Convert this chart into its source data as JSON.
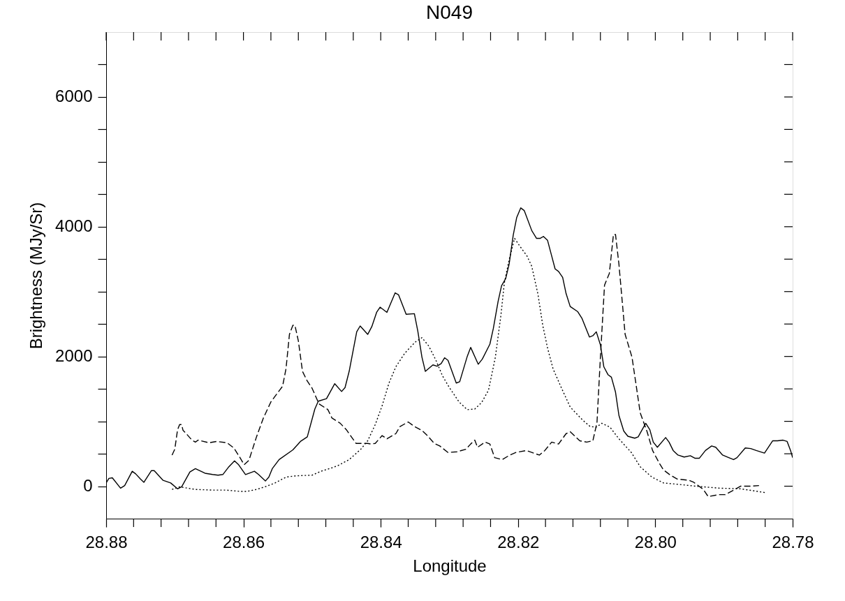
{
  "chart_data": {
    "type": "line",
    "title": "N049",
    "xlabel": "Longitude",
    "ylabel": "Brightness (MJy/Sr)",
    "xlim": [
      28.88,
      28.78
    ],
    "ylim": [
      -500,
      7000
    ],
    "xticks": [
      28.88,
      {
        "value": 28.876,
        "label": null
      },
      {
        "value": 28.872,
        "label": null
      },
      {
        "value": 28.868,
        "label": null
      },
      {
        "value": 28.864,
        "label": null
      },
      28.86,
      {
        "value": 28.856,
        "label": null
      },
      {
        "value": 28.852,
        "label": null
      },
      {
        "value": 28.848,
        "label": null
      },
      {
        "value": 28.844,
        "label": null
      },
      28.84,
      {
        "value": 28.836,
        "label": null
      },
      {
        "value": 28.832,
        "label": null
      },
      {
        "value": 28.828,
        "label": null
      },
      {
        "value": 28.824,
        "label": null
      },
      28.82,
      {
        "value": 28.816,
        "label": null
      },
      {
        "value": 28.812,
        "label": null
      },
      {
        "value": 28.808,
        "label": null
      },
      {
        "value": 28.804,
        "label": null
      },
      "28.80",
      {
        "value": 28.796,
        "label": null
      },
      {
        "value": 28.792,
        "label": null
      },
      {
        "value": 28.788,
        "label": null
      },
      {
        "value": 28.784,
        "label": null
      },
      28.78
    ],
    "yticks": [
      0,
      {
        "value": 500,
        "label": null
      },
      {
        "value": 1000,
        "label": null
      },
      {
        "value": 1500,
        "label": null
      },
      2000,
      {
        "value": 2500,
        "label": null
      },
      {
        "value": 3000,
        "label": null
      },
      {
        "value": 3500,
        "label": null
      },
      4000,
      {
        "value": 4500,
        "label": null
      },
      {
        "value": 5000,
        "label": null
      },
      {
        "value": 5500,
        "label": null
      },
      6000,
      {
        "value": 6500,
        "label": null
      }
    ],
    "grid": false,
    "legend": false,
    "marker": "none",
    "series": [
      {
        "color": "#000000",
        "line_style": "solid",
        "x": [
          28.88,
          28.8796,
          28.8791,
          28.8779,
          28.8773,
          28.8762,
          28.8757,
          28.875,
          28.8745,
          28.8734,
          28.873,
          28.8717,
          28.8706,
          28.8696,
          28.869,
          28.8678,
          28.867,
          28.8656,
          28.8645,
          28.8637,
          28.863,
          28.8622,
          28.8613,
          28.8607,
          28.8597,
          28.8584,
          28.8578,
          28.8568,
          28.8563,
          28.8558,
          28.8548,
          28.8528,
          28.8517,
          28.8507,
          28.8496,
          28.8491,
          28.8479,
          28.8467,
          28.8457,
          28.8452,
          28.8446,
          28.8435,
          28.843,
          28.8419,
          28.8413,
          28.8406,
          28.8401,
          28.8391,
          28.8379,
          28.8374,
          28.8363,
          28.8351,
          28.8346,
          28.834,
          28.8335,
          28.8324,
          28.8318,
          28.8312,
          28.8307,
          28.8302,
          28.829,
          28.8285,
          28.8274,
          28.8269,
          28.8258,
          28.8252,
          28.8241,
          28.8236,
          28.8229,
          28.8224,
          28.8218,
          28.8213,
          28.8207,
          28.8202,
          28.8196,
          28.8191,
          28.818,
          28.8173,
          28.8168,
          28.8163,
          28.8157,
          28.8151,
          28.8146,
          28.8141,
          28.8135,
          28.813,
          28.8124,
          28.8113,
          28.8107,
          28.8096,
          28.8091,
          28.8086,
          28.808,
          28.8075,
          28.8069,
          28.8064,
          28.8058,
          28.8053,
          28.8046,
          28.804,
          28.803,
          28.8025,
          28.8014,
          28.8008,
          28.8003,
          28.7997,
          28.7985,
          28.798,
          28.7974,
          28.7967,
          28.7958,
          28.7949,
          28.7942,
          28.7936,
          28.7927,
          28.7918,
          28.7912,
          28.7902,
          28.7893,
          28.7886,
          28.7881,
          28.7869,
          28.7861,
          28.7853,
          28.7841,
          28.7829,
          28.7822,
          28.7814,
          28.7808,
          28.7803,
          28.78
        ],
        "values": [
          50,
          120,
          130,
          -30,
          10,
          230,
          190,
          110,
          60,
          240,
          240,
          90,
          50,
          -40,
          -10,
          220,
          270,
          200,
          180,
          170,
          180,
          290,
          390,
          330,
          180,
          230,
          180,
          80,
          140,
          270,
          410,
          560,
          690,
          760,
          1190,
          1310,
          1350,
          1580,
          1460,
          1520,
          1770,
          2380,
          2470,
          2340,
          2460,
          2680,
          2760,
          2680,
          2980,
          2950,
          2650,
          2660,
          2390,
          1990,
          1770,
          1870,
          1850,
          1890,
          1980,
          1940,
          1590,
          1610,
          2000,
          2140,
          1880,
          1960,
          2190,
          2430,
          2850,
          3090,
          3200,
          3420,
          3870,
          4140,
          4290,
          4250,
          3940,
          3820,
          3820,
          3850,
          3790,
          3550,
          3350,
          3310,
          3220,
          2970,
          2770,
          2690,
          2590,
          2300,
          2320,
          2380,
          2180,
          1840,
          1720,
          1680,
          1450,
          1090,
          850,
          770,
          740,
          760,
          970,
          870,
          680,
          600,
          750,
          680,
          550,
          480,
          450,
          470,
          430,
          430,
          550,
          620,
          600,
          480,
          440,
          410,
          440,
          590,
          580,
          550,
          510,
          700,
          700,
          710,
          690,
          550,
          440
        ]
      },
      {
        "color": "#000000",
        "line_style": "dashed",
        "x": [
          28.8704,
          28.87,
          28.8696,
          28.8693,
          28.869,
          28.8688,
          28.8685,
          28.8675,
          28.867,
          28.8666,
          28.865,
          28.8639,
          28.8624,
          28.8614,
          28.8605,
          28.8599,
          28.8592,
          28.8581,
          28.8571,
          28.856,
          28.8548,
          28.8543,
          28.8538,
          28.8533,
          28.8528,
          28.8525,
          28.852,
          28.8514,
          28.8507,
          28.85,
          28.849,
          28.8477,
          28.8471,
          28.8459,
          28.845,
          28.8442,
          28.8436,
          28.8419,
          28.8414,
          28.8408,
          28.8398,
          28.8391,
          28.8378,
          28.8372,
          28.836,
          28.8351,
          28.834,
          28.8332,
          28.8322,
          28.8314,
          28.8302,
          28.8289,
          28.8276,
          28.8269,
          28.8263,
          28.8259,
          28.8248,
          28.8241,
          28.8234,
          28.8223,
          28.8212,
          28.8203,
          28.8188,
          28.818,
          28.8169,
          28.8161,
          28.8151,
          28.8141,
          28.813,
          28.8124,
          28.811,
          28.81,
          28.8091,
          28.8085,
          28.808,
          28.8074,
          28.8067,
          28.8061,
          28.8058,
          28.8053,
          28.8044,
          28.8034,
          28.8022,
          28.8012,
          28.8004,
          28.7994,
          28.7988,
          28.7978,
          28.7968,
          28.7951,
          28.7944,
          28.793,
          28.7923,
          28.7908,
          28.7898,
          28.7884,
          28.7876,
          28.7861,
          28.7849
        ],
        "values": [
          480,
          570,
          870,
          950,
          950,
          860,
          830,
          710,
          680,
          710,
          670,
          690,
          670,
          590,
          440,
          330,
          400,
          760,
          1050,
          1300,
          1470,
          1540,
          1810,
          2340,
          2480,
          2480,
          2240,
          1770,
          1620,
          1510,
          1270,
          1180,
          1050,
          970,
          870,
          750,
          660,
          660,
          650,
          660,
          780,
          730,
          810,
          920,
          990,
          920,
          860,
          780,
          660,
          620,
          520,
          530,
          570,
          650,
          710,
          600,
          680,
          650,
          440,
          410,
          480,
          520,
          550,
          520,
          480,
          550,
          680,
          650,
          810,
          840,
          700,
          680,
          700,
          980,
          1990,
          3100,
          3280,
          3880,
          3880,
          3420,
          2340,
          1990,
          1130,
          840,
          550,
          350,
          250,
          170,
          110,
          90,
          60,
          -50,
          -160,
          -130,
          -130,
          -50,
          0,
          0,
          10
        ]
      },
      {
        "color": "#000000",
        "line_style": "dotted",
        "x": [
          28.8704,
          28.8693,
          28.867,
          28.8645,
          28.8625,
          28.8605,
          28.8595,
          28.8581,
          28.8566,
          28.8554,
          28.8538,
          28.8523,
          28.85,
          28.8487,
          28.8472,
          28.8462,
          28.8446,
          28.8429,
          28.8419,
          28.8408,
          28.8398,
          28.8388,
          28.8378,
          28.8365,
          28.835,
          28.834,
          28.833,
          28.832,
          28.831,
          28.83,
          28.8286,
          28.8274,
          28.8263,
          28.8253,
          28.8243,
          28.8233,
          28.8225,
          28.822,
          28.8213,
          28.8205,
          28.8198,
          28.8187,
          28.818,
          28.8171,
          28.8164,
          28.8157,
          28.8149,
          28.8137,
          28.8124,
          28.8106,
          28.8095,
          28.8086,
          28.8078,
          28.8066,
          28.8053,
          28.8035,
          28.8022,
          28.8005,
          28.7988,
          28.7968,
          28.7941,
          28.7907,
          28.7876,
          28.7839
        ],
        "values": [
          -50,
          -10,
          -50,
          -60,
          -60,
          -80,
          -80,
          -50,
          0,
          50,
          140,
          160,
          170,
          230,
          280,
          320,
          410,
          570,
          700,
          950,
          1240,
          1590,
          1840,
          2050,
          2220,
          2290,
          2160,
          1950,
          1700,
          1520,
          1300,
          1180,
          1190,
          1290,
          1480,
          1990,
          2630,
          3130,
          3490,
          3820,
          3710,
          3550,
          3390,
          2960,
          2480,
          2130,
          1810,
          1520,
          1220,
          1020,
          920,
          910,
          970,
          910,
          730,
          520,
          300,
          140,
          50,
          30,
          0,
          -30,
          -40,
          -100
        ]
      }
    ]
  }
}
